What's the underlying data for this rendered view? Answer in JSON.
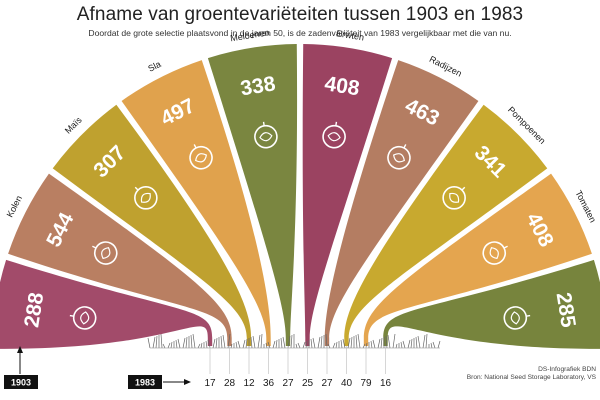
{
  "title": "Afname van groentevariëteiten tussen 1903 en 1983",
  "subtitle": "Doordat de grote selectie plaatsvond in de jaren 50, is de zadenvariëteit van 1983 vergelijkbaar met die van nu.",
  "credit": {
    "line1": "DS-Infografiek BDN",
    "line2": "Bron: National Seed Storage Laboratory, VS"
  },
  "colors": {
    "bieten": "#a24b6a",
    "kolen": "#b97f62",
    "mais": "#bfa12f",
    "sla": "#e0a24d",
    "meloenen": "#7a8640",
    "erwten": "#9b4361",
    "radijzen": "#b47d62",
    "pompoenen": "#c8a92f",
    "tomaten": "#e4a54f",
    "komkommers": "#77843d"
  },
  "chart_data": {
    "type": "radial-bar",
    "title": "Afname van groentevariëteiten tussen 1903 en 1983",
    "subtitle": "Doordat de grote selectie plaatsvond in de jaren 50, is de zadenvariëteit van 1983 vergelijkbaar met die van nu.",
    "series_years": [
      "1903",
      "1983"
    ],
    "categories": [
      {
        "key": "bieten",
        "name": "",
        "icon": "beet-icon",
        "v1903": 288,
        "v1983": 17
      },
      {
        "key": "kolen",
        "name": "Kolen",
        "icon": "cabbage-icon",
        "v1903": 544,
        "v1983": 28
      },
      {
        "key": "mais",
        "name": "Maïs",
        "icon": "corn-icon",
        "v1903": 307,
        "v1983": 12
      },
      {
        "key": "sla",
        "name": "Sla",
        "icon": "lettuce-icon",
        "v1903": 497,
        "v1983": 36
      },
      {
        "key": "meloenen",
        "name": "Meloenen",
        "icon": "melon-icon",
        "v1903": 338,
        "v1983": 27
      },
      {
        "key": "erwten",
        "name": "Erwten",
        "icon": "peapod-icon",
        "v1903": 408,
        "v1983": 25
      },
      {
        "key": "radijzen",
        "name": "Radijzen",
        "icon": "radish-icon",
        "v1903": 463,
        "v1983": 27
      },
      {
        "key": "pompoenen",
        "name": "Pompoenen",
        "icon": "pumpkin-icon",
        "v1903": 341,
        "v1983": 40
      },
      {
        "key": "tomaten",
        "name": "Tomaten",
        "icon": "tomato-icon",
        "v1903": 408,
        "v1983": 79
      },
      {
        "key": "komkommers",
        "name": "",
        "icon": "cucumber-icon",
        "v1903": 285,
        "v1983": 16
      }
    ]
  }
}
